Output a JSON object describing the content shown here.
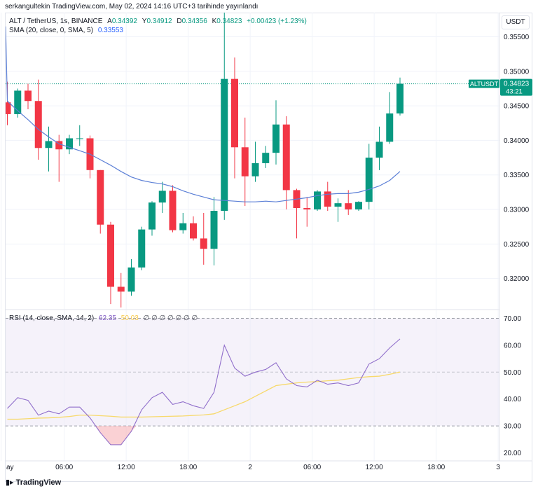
{
  "attribution": "serkangultekin TradingView.com, May 02, 2024 14:16 UTC+3 tarihinde yayınlandı",
  "currency_button": "USDT",
  "legend": {
    "symbol": "ALT / TetherUS, 1s, BINANCE",
    "o_label": "A",
    "o": "0.34392",
    "h_label": "Y",
    "h": "0.34912",
    "l_label": "D",
    "l": "0.34356",
    "c_label": "K",
    "c": "0.34823",
    "change": "+0.00423 (+1.23%)",
    "sma_label": "SMA (20, close, 0, SMA, 5)",
    "sma_value": "0.33553",
    "rsi_label": "RSI (14, close, SMA, 14, 2)",
    "rsi_value": "62.35",
    "rsi_sma_value": "50.03",
    "rsi_extra": "∅ ∅ ∅ ∅ ∅ ∅ ∅"
  },
  "last_price_tag": {
    "symbol": "ALTUSDT",
    "price": "0.34823",
    "countdown": "43:21"
  },
  "logo_text": "TradingView",
  "colors": {
    "up": "#089981",
    "down": "#f23645",
    "sma": "#5b7fd6",
    "rsi": "#7e57c2",
    "rsi_sma": "#f7d96b",
    "band": "#ede7f6"
  },
  "chart_data": {
    "type": "candlestick",
    "price_axis": {
      "ticks": [
        0.32,
        0.325,
        0.33,
        0.335,
        0.34,
        0.345,
        0.35,
        0.355
      ],
      "labels": [
        "0.32000",
        "0.32500",
        "0.33000",
        "0.33500",
        "0.34000",
        "0.34500",
        "0.35000",
        "0.35500"
      ],
      "range": [
        0.3155,
        0.3585
      ]
    },
    "rsi_axis": {
      "ticks": [
        20,
        30,
        40,
        50,
        60,
        70
      ],
      "labels": [
        "20.00",
        "30.00",
        "40.00",
        "50.00",
        "60.00",
        "70.00"
      ],
      "range": [
        17,
        73
      ],
      "band": [
        30,
        70
      ]
    },
    "time_labels": [
      {
        "index": -0.6,
        "label": "ay"
      },
      {
        "index": 5.5,
        "label": "06:00"
      },
      {
        "index": 11.5,
        "label": "12:00"
      },
      {
        "index": 17.5,
        "label": "18:00"
      },
      {
        "index": 23.5,
        "label": "2"
      },
      {
        "index": 29.5,
        "label": "06:00"
      },
      {
        "index": 35.5,
        "label": "12:00"
      },
      {
        "index": 41.5,
        "label": "18:00"
      },
      {
        "index": 47.5,
        "label": "3"
      }
    ],
    "candles": [
      {
        "o": 0.3455,
        "h": 0.3485,
        "l": 0.3422,
        "c": 0.3438
      },
      {
        "o": 0.3438,
        "h": 0.3475,
        "l": 0.3433,
        "c": 0.3472
      },
      {
        "o": 0.3472,
        "h": 0.3482,
        "l": 0.3445,
        "c": 0.3457
      },
      {
        "o": 0.3457,
        "h": 0.3488,
        "l": 0.3372,
        "c": 0.3389
      },
      {
        "o": 0.3389,
        "h": 0.342,
        "l": 0.3355,
        "c": 0.3399
      },
      {
        "o": 0.3399,
        "h": 0.3408,
        "l": 0.334,
        "c": 0.3387
      },
      {
        "o": 0.3387,
        "h": 0.3408,
        "l": 0.338,
        "c": 0.3403
      },
      {
        "o": 0.3403,
        "h": 0.3422,
        "l": 0.3392,
        "c": 0.3403
      },
      {
        "o": 0.3403,
        "h": 0.3407,
        "l": 0.3345,
        "c": 0.3357
      },
      {
        "o": 0.3357,
        "h": 0.3357,
        "l": 0.3265,
        "c": 0.3278
      },
      {
        "o": 0.3278,
        "h": 0.3282,
        "l": 0.3163,
        "c": 0.3188
      },
      {
        "o": 0.3188,
        "h": 0.3208,
        "l": 0.3158,
        "c": 0.3181
      },
      {
        "o": 0.3181,
        "h": 0.3228,
        "l": 0.3175,
        "c": 0.3216
      },
      {
        "o": 0.3216,
        "h": 0.3275,
        "l": 0.3212,
        "c": 0.3271
      },
      {
        "o": 0.3271,
        "h": 0.3312,
        "l": 0.3262,
        "c": 0.331
      },
      {
        "o": 0.331,
        "h": 0.334,
        "l": 0.3295,
        "c": 0.3327
      },
      {
        "o": 0.3327,
        "h": 0.3335,
        "l": 0.3267,
        "c": 0.327
      },
      {
        "o": 0.327,
        "h": 0.3295,
        "l": 0.3265,
        "c": 0.328
      },
      {
        "o": 0.328,
        "h": 0.329,
        "l": 0.3255,
        "c": 0.3258
      },
      {
        "o": 0.3258,
        "h": 0.3295,
        "l": 0.322,
        "c": 0.3243
      },
      {
        "o": 0.3243,
        "h": 0.3318,
        "l": 0.3219,
        "c": 0.3298
      },
      {
        "o": 0.3298,
        "h": 0.3585,
        "l": 0.3285,
        "c": 0.3489
      },
      {
        "o": 0.3489,
        "h": 0.352,
        "l": 0.3345,
        "c": 0.339
      },
      {
        "o": 0.339,
        "h": 0.3433,
        "l": 0.3305,
        "c": 0.3348
      },
      {
        "o": 0.3348,
        "h": 0.3398,
        "l": 0.334,
        "c": 0.3367
      },
      {
        "o": 0.3367,
        "h": 0.3392,
        "l": 0.336,
        "c": 0.3382
      },
      {
        "o": 0.3382,
        "h": 0.3458,
        "l": 0.3365,
        "c": 0.3423
      },
      {
        "o": 0.3423,
        "h": 0.3435,
        "l": 0.33,
        "c": 0.3328
      },
      {
        "o": 0.3328,
        "h": 0.333,
        "l": 0.3258,
        "c": 0.3302
      },
      {
        "o": 0.3302,
        "h": 0.3318,
        "l": 0.3275,
        "c": 0.33
      },
      {
        "o": 0.33,
        "h": 0.3328,
        "l": 0.3298,
        "c": 0.3326
      },
      {
        "o": 0.3326,
        "h": 0.334,
        "l": 0.3298,
        "c": 0.3304
      },
      {
        "o": 0.3304,
        "h": 0.3316,
        "l": 0.3282,
        "c": 0.3309
      },
      {
        "o": 0.3309,
        "h": 0.3328,
        "l": 0.3292,
        "c": 0.33
      },
      {
        "o": 0.33,
        "h": 0.3312,
        "l": 0.3298,
        "c": 0.3311
      },
      {
        "o": 0.3311,
        "h": 0.3395,
        "l": 0.33,
        "c": 0.3375
      },
      {
        "o": 0.3375,
        "h": 0.342,
        "l": 0.3357,
        "c": 0.3398
      },
      {
        "o": 0.3398,
        "h": 0.347,
        "l": 0.3395,
        "c": 0.3439
      },
      {
        "o": 0.3439,
        "h": 0.3491,
        "l": 0.3436,
        "c": 0.3482
      }
    ],
    "sma": [
      0.3457,
      0.3443,
      0.343,
      0.3416,
      0.3405,
      0.3395,
      0.339,
      0.3385,
      0.338,
      0.3372,
      0.3364,
      0.3355,
      0.3347,
      0.3342,
      0.3339,
      0.3337,
      0.3333,
      0.3327,
      0.3322,
      0.3318,
      0.3314,
      0.3313,
      0.3312,
      0.3311,
      0.3311,
      0.3312,
      0.3311,
      0.3313,
      0.3315,
      0.3317,
      0.332,
      0.3322,
      0.3323,
      0.3323,
      0.3325,
      0.3329,
      0.3334,
      0.3342,
      0.3355
    ],
    "rsi": [
      36.5,
      40.5,
      39.5,
      34.0,
      35.5,
      34.5,
      37.0,
      37.0,
      33.0,
      27.5,
      23.0,
      23.0,
      28.0,
      36.0,
      40.5,
      42.5,
      38.0,
      39.0,
      37.5,
      36.5,
      42.5,
      60.0,
      51.5,
      48.5,
      50.0,
      51.0,
      53.5,
      47.5,
      45.0,
      44.5,
      47.0,
      45.5,
      46.0,
      45.0,
      46.0,
      53.0,
      55.0,
      59.0,
      62.35
    ],
    "rsi_sma": [
      32.5,
      32.5,
      32.7,
      32.9,
      33.0,
      33.2,
      33.5,
      34.0,
      34.0,
      33.8,
      33.6,
      33.3,
      33.3,
      33.3,
      33.4,
      33.5,
      33.6,
      33.7,
      33.9,
      34.1,
      34.5,
      36.0,
      37.5,
      39.0,
      41.0,
      43.0,
      45.0,
      45.5,
      46.0,
      46.3,
      46.5,
      46.8,
      47.0,
      47.5,
      48.0,
      48.3,
      48.5,
      49.2,
      50.03
    ]
  }
}
